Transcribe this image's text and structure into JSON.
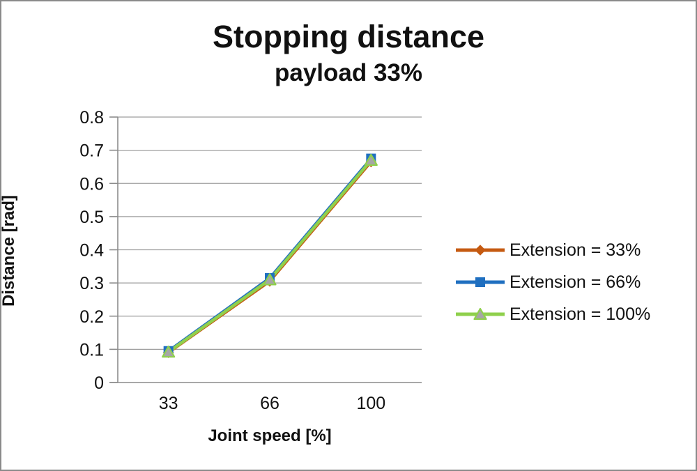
{
  "chart_data": {
    "type": "line",
    "title": "Stopping distance",
    "subtitle": "payload 33%",
    "xlabel": "Joint speed [%]",
    "ylabel": "Distance [rad]",
    "categories": [
      "33",
      "66",
      "100"
    ],
    "series": [
      {
        "name": "Extension = 33%",
        "values": [
          0.09,
          0.305,
          0.665
        ],
        "color": "#C55A11",
        "marker": "diamond",
        "marker_fill": "#C55A11"
      },
      {
        "name": "Extension = 66%",
        "values": [
          0.095,
          0.315,
          0.675
        ],
        "color": "#1F6FC0",
        "marker": "square",
        "marker_fill": "#1F6FC0"
      },
      {
        "name": "Extension = 100%",
        "values": [
          0.092,
          0.31,
          0.67
        ],
        "color": "#8FD04C",
        "marker": "triangle",
        "marker_fill": "#A6A6A6"
      }
    ],
    "ylim": [
      0,
      0.8
    ],
    "ytick_step": 0.1,
    "ytick_labels": [
      "0",
      "0.1",
      "0.2",
      "0.3",
      "0.4",
      "0.5",
      "0.6",
      "0.7",
      "0.8"
    ],
    "grid": true,
    "legend_position": "right",
    "colors": {
      "axis": "#8c8c8c",
      "gridline": "#9e9e9e",
      "text": "#111111",
      "background": "#ffffff",
      "frame_border": "#8a8a8a"
    }
  }
}
